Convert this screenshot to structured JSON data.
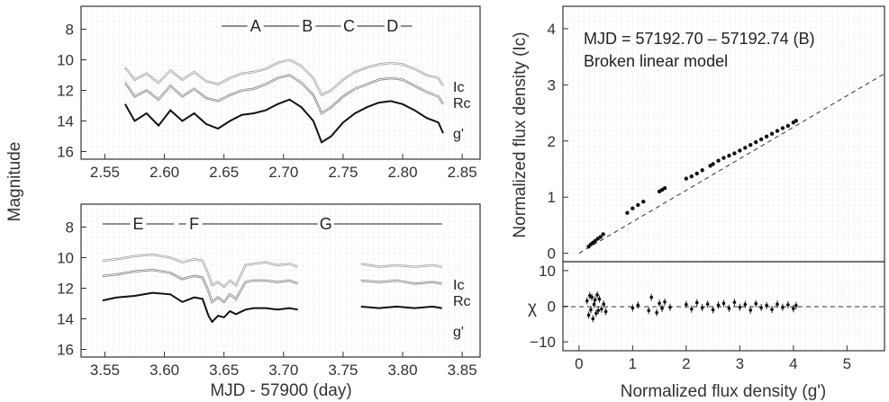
{
  "figure": {
    "shared_ylabel": "Magnitude",
    "shared_xlabel": "MJD - 57900 (day)"
  },
  "chart_data": [
    {
      "type": "line",
      "panel": "top-left",
      "xlim": [
        2.53,
        2.865
      ],
      "ylim": [
        16.5,
        6.5
      ],
      "y_inverted": true,
      "grid": true,
      "x_ticks": [
        "2.55",
        "2.60",
        "2.65",
        "2.70",
        "2.75",
        "2.80",
        "2.85"
      ],
      "x_tick_values": [
        2.55,
        2.6,
        2.65,
        2.7,
        2.75,
        2.8,
        2.85
      ],
      "y_ticks": [
        "8",
        "10",
        "12",
        "14",
        "16"
      ],
      "y_tick_values": [
        8,
        10,
        12,
        14,
        16
      ],
      "segments": [
        {
          "label": "A",
          "start": 2.648,
          "end": 2.705
        },
        {
          "label": "B",
          "start": 2.705,
          "end": 2.735
        },
        {
          "label": "C",
          "start": 2.735,
          "end": 2.775
        },
        {
          "label": "D",
          "start": 2.775,
          "end": 2.808
        }
      ],
      "series": [
        {
          "name": "Ic",
          "color": "#999999",
          "x": [
            2.567,
            2.575,
            2.585,
            2.595,
            2.605,
            2.615,
            2.625,
            2.635,
            2.645,
            2.655,
            2.665,
            2.675,
            2.685,
            2.695,
            2.705,
            2.715,
            2.725,
            2.732,
            2.74,
            2.75,
            2.76,
            2.77,
            2.78,
            2.79,
            2.8,
            2.81,
            2.82,
            2.83,
            2.834
          ],
          "values": [
            10.5,
            11.3,
            10.9,
            11.5,
            10.7,
            11.3,
            10.8,
            11.4,
            11.6,
            11.2,
            10.9,
            10.8,
            10.6,
            10.2,
            10.0,
            10.4,
            11.2,
            12.3,
            12.0,
            11.3,
            10.8,
            10.5,
            10.3,
            10.2,
            10.3,
            10.6,
            11.0,
            11.2,
            11.7
          ]
        },
        {
          "name": "Rc",
          "color": "#777777",
          "x": [
            2.567,
            2.575,
            2.585,
            2.595,
            2.605,
            2.615,
            2.625,
            2.635,
            2.645,
            2.655,
            2.665,
            2.675,
            2.685,
            2.695,
            2.705,
            2.715,
            2.725,
            2.732,
            2.74,
            2.75,
            2.76,
            2.77,
            2.78,
            2.79,
            2.8,
            2.81,
            2.82,
            2.83,
            2.834
          ],
          "values": [
            11.5,
            12.4,
            12.0,
            12.6,
            11.7,
            12.4,
            11.9,
            12.5,
            12.7,
            12.3,
            12.0,
            11.9,
            11.6,
            11.2,
            11.0,
            11.5,
            12.3,
            13.5,
            13.1,
            12.4,
            11.9,
            11.6,
            11.3,
            11.2,
            11.3,
            11.7,
            12.1,
            12.4,
            12.9
          ]
        },
        {
          "name": "g'",
          "color": "#111111",
          "x": [
            2.567,
            2.575,
            2.585,
            2.595,
            2.605,
            2.615,
            2.625,
            2.635,
            2.645,
            2.655,
            2.665,
            2.675,
            2.685,
            2.695,
            2.705,
            2.715,
            2.725,
            2.732,
            2.74,
            2.75,
            2.76,
            2.77,
            2.78,
            2.79,
            2.8,
            2.81,
            2.82,
            2.83,
            2.834
          ],
          "values": [
            12.9,
            14.0,
            13.5,
            14.3,
            13.3,
            14.0,
            13.5,
            14.2,
            14.5,
            14.0,
            13.6,
            13.5,
            13.3,
            12.9,
            12.6,
            13.1,
            14.0,
            15.4,
            15.0,
            14.1,
            13.5,
            13.1,
            12.8,
            12.7,
            12.9,
            13.3,
            13.8,
            14.1,
            14.8
          ]
        }
      ]
    },
    {
      "type": "line",
      "panel": "bottom-left",
      "xlim": [
        3.53,
        3.865
      ],
      "ylim": [
        16.5,
        6.5
      ],
      "y_inverted": true,
      "grid": true,
      "x_ticks": [
        "3.55",
        "3.60",
        "3.65",
        "3.70",
        "3.75",
        "3.80",
        "3.85"
      ],
      "x_tick_values": [
        3.55,
        3.6,
        3.65,
        3.7,
        3.75,
        3.8,
        3.85
      ],
      "y_ticks": [
        "8",
        "10",
        "12",
        "14",
        "16"
      ],
      "y_tick_values": [
        8,
        10,
        12,
        14,
        16
      ],
      "segments": [
        {
          "label": "E",
          "start": 3.548,
          "end": 3.608
        },
        {
          "label": "F",
          "start": 3.612,
          "end": 3.638
        },
        {
          "label": "G",
          "start": 3.638,
          "end": 3.833
        }
      ],
      "series": [
        {
          "name": "Ic",
          "color": "#999999",
          "x": [
            3.548,
            3.56,
            3.575,
            3.59,
            3.605,
            3.615,
            3.625,
            3.632,
            3.637,
            3.64,
            3.645,
            3.65,
            3.655,
            3.66,
            3.668,
            3.675,
            3.685,
            3.695,
            3.705,
            3.712,
            3.765,
            3.78,
            3.795,
            3.81,
            3.825,
            3.833
          ],
          "values": [
            10.2,
            10.1,
            9.9,
            9.8,
            10.0,
            10.3,
            10.1,
            10.2,
            11.1,
            11.8,
            11.6,
            11.9,
            11.5,
            11.8,
            10.5,
            10.4,
            10.3,
            10.5,
            10.4,
            10.6,
            10.4,
            10.6,
            10.5,
            10.6,
            10.5,
            10.6
          ]
        },
        {
          "name": "Rc",
          "color": "#777777",
          "x": [
            3.548,
            3.56,
            3.575,
            3.59,
            3.605,
            3.615,
            3.625,
            3.632,
            3.637,
            3.64,
            3.645,
            3.65,
            3.655,
            3.66,
            3.668,
            3.675,
            3.685,
            3.695,
            3.705,
            3.712,
            3.765,
            3.78,
            3.795,
            3.81,
            3.825,
            3.833
          ],
          "values": [
            11.2,
            11.1,
            10.9,
            10.8,
            11.0,
            11.4,
            11.2,
            11.3,
            12.2,
            12.9,
            12.6,
            12.9,
            12.4,
            12.7,
            11.6,
            11.5,
            11.5,
            11.6,
            11.5,
            11.7,
            11.5,
            11.6,
            11.5,
            11.7,
            11.6,
            11.7
          ]
        },
        {
          "name": "g'",
          "color": "#111111",
          "x": [
            3.548,
            3.56,
            3.575,
            3.59,
            3.605,
            3.615,
            3.625,
            3.632,
            3.637,
            3.64,
            3.645,
            3.65,
            3.655,
            3.66,
            3.668,
            3.675,
            3.685,
            3.695,
            3.705,
            3.712,
            3.765,
            3.78,
            3.795,
            3.81,
            3.825,
            3.833
          ],
          "values": [
            12.8,
            12.6,
            12.5,
            12.3,
            12.4,
            12.9,
            12.6,
            12.7,
            13.8,
            14.2,
            13.8,
            13.9,
            13.5,
            13.7,
            13.4,
            13.3,
            13.3,
            13.4,
            13.3,
            13.4,
            13.2,
            13.3,
            13.2,
            13.3,
            13.2,
            13.3
          ]
        }
      ]
    },
    {
      "type": "scatter",
      "panel": "top-right",
      "xlim": [
        -0.3,
        5.7
      ],
      "ylim": [
        -0.15,
        4.4
      ],
      "grid": true,
      "ylabel": "Normalized flux density (Ic)",
      "y_ticks": [
        "0",
        "1",
        "2",
        "3",
        "4"
      ],
      "y_tick_values": [
        0,
        1,
        2,
        3,
        4
      ],
      "annotation_line1": "MJD = 57192.70 – 57192.74 (B)",
      "annotation_line2": "Broken linear model",
      "model_line": {
        "x": [
          0,
          5.7
        ],
        "y": [
          0,
          3.2
        ]
      },
      "points": {
        "x": [
          0.18,
          0.22,
          0.26,
          0.3,
          0.35,
          0.4,
          0.45,
          0.9,
          1.0,
          1.1,
          1.2,
          1.5,
          1.55,
          1.6,
          2.0,
          2.1,
          2.2,
          2.3,
          2.45,
          2.5,
          2.6,
          2.7,
          2.8,
          2.9,
          3.0,
          3.1,
          3.2,
          3.3,
          3.4,
          3.5,
          3.6,
          3.7,
          3.8,
          3.9,
          4.0,
          4.05
        ],
        "y": [
          0.12,
          0.16,
          0.19,
          0.22,
          0.26,
          0.29,
          0.34,
          0.72,
          0.8,
          0.86,
          0.92,
          1.1,
          1.13,
          1.16,
          1.33,
          1.37,
          1.42,
          1.48,
          1.56,
          1.59,
          1.65,
          1.7,
          1.74,
          1.78,
          1.83,
          1.88,
          1.93,
          1.98,
          2.03,
          2.08,
          2.13,
          2.18,
          2.23,
          2.27,
          2.33,
          2.36
        ]
      }
    },
    {
      "type": "scatter",
      "panel": "bottom-right",
      "xlim": [
        -0.3,
        5.7
      ],
      "ylim": [
        -12.5,
        12.5
      ],
      "grid": true,
      "xlabel": "Normalized flux density (g')",
      "ylabel": "χ",
      "x_ticks": [
        "0",
        "1",
        "2",
        "3",
        "4",
        "5"
      ],
      "x_tick_values": [
        0,
        1,
        2,
        3,
        4,
        5
      ],
      "y_ticks": [
        "10",
        "0",
        "−10"
      ],
      "y_tick_values": [
        10,
        0,
        -10
      ],
      "points": {
        "x": [
          0.15,
          0.18,
          0.2,
          0.22,
          0.24,
          0.26,
          0.28,
          0.3,
          0.32,
          0.34,
          0.36,
          0.38,
          0.42,
          0.46,
          0.5,
          1.0,
          1.1,
          1.3,
          1.35,
          1.45,
          1.5,
          1.55,
          1.6,
          1.7,
          2.0,
          2.1,
          2.2,
          2.3,
          2.4,
          2.5,
          2.6,
          2.7,
          2.8,
          2.9,
          3.0,
          3.1,
          3.2,
          3.3,
          3.4,
          3.5,
          3.6,
          3.7,
          3.8,
          3.9,
          4.0,
          4.05
        ],
        "y": [
          1.5,
          -2.5,
          3.0,
          -1.0,
          2.5,
          -3.5,
          0.5,
          1.8,
          -2.0,
          3.2,
          -1.2,
          2.0,
          -0.8,
          0.6,
          -1.5,
          -0.5,
          0.3,
          -1.2,
          2.5,
          -1.8,
          0.8,
          -0.6,
          1.2,
          -0.3,
          0.5,
          -0.8,
          1.0,
          -0.4,
          0.6,
          -1.0,
          0.3,
          0.8,
          -0.6,
          1.1,
          -0.3,
          0.5,
          -1.1,
          0.7,
          -0.4,
          0.2,
          -0.9,
          0.6,
          -0.3,
          0.4,
          -0.7,
          0.2
        ]
      }
    }
  ]
}
